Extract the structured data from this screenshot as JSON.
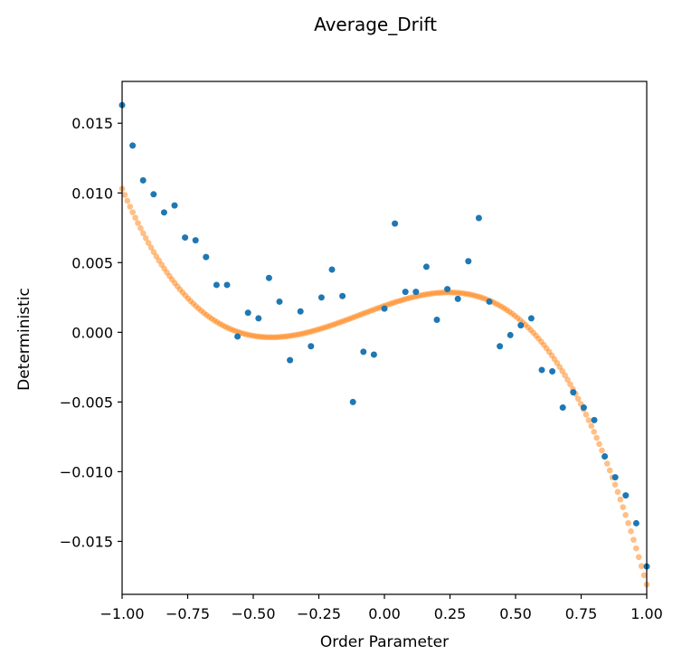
{
  "chart_data": {
    "type": "scatter",
    "title": "Average_Drift",
    "xlabel": "Order Parameter",
    "ylabel": "Deterministic",
    "xlim": [
      -1.0,
      1.0
    ],
    "ylim": [
      -0.0188,
      0.018
    ],
    "x_ticks": [
      -1.0,
      -0.75,
      -0.5,
      -0.25,
      0.0,
      0.25,
      0.5,
      0.75,
      1.0
    ],
    "x_tick_labels": [
      "−1.00",
      "−0.75",
      "−0.50",
      "−0.25",
      "0.00",
      "0.25",
      "0.50",
      "0.75",
      "1.00"
    ],
    "y_ticks": [
      -0.015,
      -0.01,
      -0.005,
      0.0,
      0.005,
      0.01,
      0.015
    ],
    "y_tick_labels": [
      "−0.015",
      "−0.010",
      "−0.005",
      "0.000",
      "0.005",
      "0.010",
      "0.015"
    ],
    "grid": false,
    "legend": "none",
    "series": [
      {
        "kind": "scatter",
        "color": "#1f77b4",
        "x": [
          -1.0,
          -0.96,
          -0.92,
          -0.88,
          -0.84,
          -0.8,
          -0.76,
          -0.72,
          -0.68,
          -0.64,
          -0.6,
          -0.56,
          -0.52,
          -0.48,
          -0.44,
          -0.4,
          -0.36,
          -0.32,
          -0.28,
          -0.24,
          -0.2,
          -0.16,
          -0.12,
          -0.08,
          -0.04,
          0.0,
          0.04,
          0.08,
          0.12,
          0.16,
          0.2,
          0.24,
          0.28,
          0.32,
          0.36,
          0.4,
          0.44,
          0.48,
          0.52,
          0.56,
          0.6,
          0.64,
          0.68,
          0.72,
          0.76,
          0.8,
          0.84,
          0.88,
          0.92,
          0.96,
          1.0
        ],
        "y": [
          0.0163,
          0.0134,
          0.0109,
          0.0099,
          0.0086,
          0.0091,
          0.0068,
          0.0066,
          0.0054,
          0.0034,
          0.0034,
          -0.0003,
          0.0014,
          0.001,
          0.0039,
          0.0022,
          -0.002,
          0.0015,
          -0.001,
          0.0025,
          0.0045,
          0.0026,
          -0.005,
          -0.0014,
          -0.0016,
          0.0017,
          0.0078,
          0.0029,
          0.0029,
          0.0047,
          0.0009,
          0.0031,
          0.0024,
          0.0051,
          0.0082,
          0.0022,
          -0.001,
          -0.0002,
          0.0005,
          0.001,
          -0.0027,
          -0.0028,
          -0.0054,
          -0.0043,
          -0.0054,
          -0.0063,
          -0.0089,
          -0.0104,
          -0.0117,
          -0.0137,
          -0.0168
        ]
      },
      {
        "kind": "fitted",
        "color": "#ff7f0e",
        "opacity": 0.5,
        "n_points": 200,
        "polynomial_coefficients_high_to_low": [
          -0.0208,
          -0.0058,
          0.0066,
          0.0019
        ]
      }
    ]
  }
}
